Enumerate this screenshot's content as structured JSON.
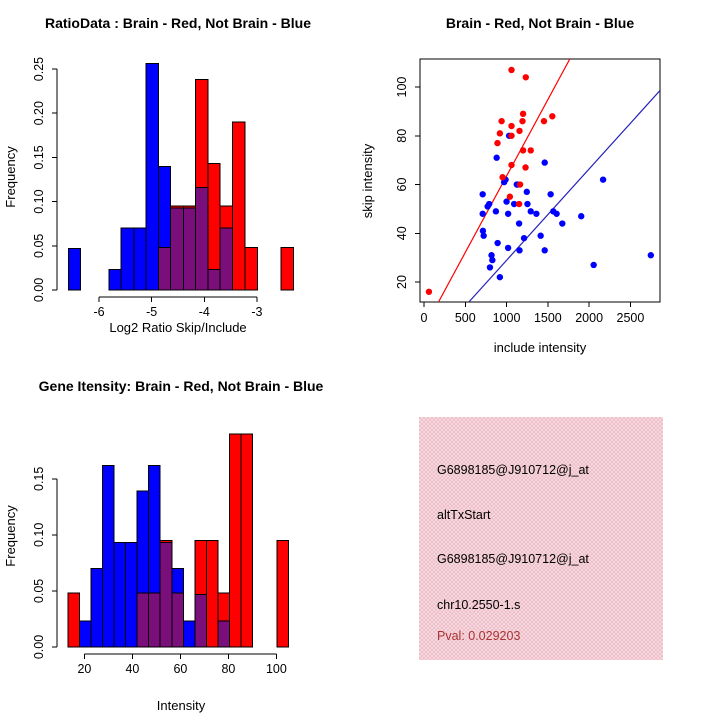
{
  "figure": {
    "background": "#ffffff"
  },
  "colors": {
    "red": "#ff0000",
    "blue": "#0000ff",
    "purple": "#7a0e7a",
    "red_line": "#ff0000",
    "blue_line": "#2222bb",
    "pink_box": "#f1c6d0",
    "pval_text": "#a93333",
    "axis": "#000000"
  },
  "chart_data": [
    {
      "id": "ratio_histogram",
      "type": "bar",
      "title": "RatioData : Brain - Red, Not Brain - Blue",
      "xlabel": "Log2 Ratio Skip/Include",
      "ylabel": "Frequency",
      "xlim": [
        -6.78,
        -2.22
      ],
      "ylim": [
        0,
        0.2557
      ],
      "xticks": [
        {
          "v": -6,
          "label": "-6"
        },
        {
          "v": -5,
          "label": "-5"
        },
        {
          "v": -4,
          "label": "-4"
        },
        {
          "v": -3,
          "label": "-3"
        }
      ],
      "yticks": [
        {
          "v": 0,
          "label": "0.00"
        },
        {
          "v": 0.05,
          "label": "0.05"
        },
        {
          "v": 0.1,
          "label": "0.10"
        },
        {
          "v": 0.15,
          "label": "0.15"
        },
        {
          "v": 0.2,
          "label": "0.20"
        },
        {
          "v": 0.25,
          "label": "0.25"
        }
      ],
      "legend_note": "Brain = red, Not Brain = blue, overlap = purple",
      "bins": [
        {
          "x0": -6.58,
          "x1": -6.35,
          "blue": 0.047,
          "red": 0
        },
        {
          "x0": -5.81,
          "x1": -5.58,
          "blue": 0.023,
          "red": 0
        },
        {
          "x0": -5.58,
          "x1": -5.34,
          "blue": 0.07,
          "red": 0
        },
        {
          "x0": -5.34,
          "x1": -5.11,
          "blue": 0.07,
          "red": 0
        },
        {
          "x0": -5.11,
          "x1": -4.87,
          "blue": 0.256,
          "red": 0
        },
        {
          "x0": -4.87,
          "x1": -4.64,
          "blue": 0.14,
          "red": 0.048
        },
        {
          "x0": -4.64,
          "x1": -4.4,
          "blue": 0.093,
          "red": 0.095
        },
        {
          "x0": -4.4,
          "x1": -4.17,
          "blue": 0.093,
          "red": 0.095
        },
        {
          "x0": -4.17,
          "x1": -3.93,
          "blue": 0.116,
          "red": 0.238
        },
        {
          "x0": -3.93,
          "x1": -3.7,
          "blue": 0.023,
          "red": 0.143
        },
        {
          "x0": -3.7,
          "x1": -3.46,
          "blue": 0.07,
          "red": 0.095
        },
        {
          "x0": -3.46,
          "x1": -3.23,
          "blue": 0,
          "red": 0.19
        },
        {
          "x0": -3.23,
          "x1": -2.99,
          "blue": 0,
          "red": 0.048
        },
        {
          "x0": -2.54,
          "x1": -2.31,
          "blue": 0,
          "red": 0.048
        }
      ]
    },
    {
      "id": "intensity_scatter",
      "type": "scatter",
      "title": "Brain - Red, Not Brain - Blue",
      "xlabel": "include intensity",
      "ylabel": "skip intensity",
      "xlim": [
        -48,
        2858
      ],
      "ylim": [
        11.8,
        111.5
      ],
      "xticks": [
        {
          "v": 0,
          "label": "0"
        },
        {
          "v": 500,
          "label": "500"
        },
        {
          "v": 1000,
          "label": "1000"
        },
        {
          "v": 1500,
          "label": "1500"
        },
        {
          "v": 2000,
          "label": "2000"
        },
        {
          "v": 2500,
          "label": "2500"
        }
      ],
      "yticks": [
        {
          "v": 20,
          "label": "20"
        },
        {
          "v": 40,
          "label": "40"
        },
        {
          "v": 60,
          "label": "60"
        },
        {
          "v": 80,
          "label": "80"
        },
        {
          "v": 100,
          "label": "100"
        }
      ],
      "red_points": [
        [
          60,
          16
        ],
        [
          1060,
          107
        ],
        [
          1233,
          104
        ],
        [
          940,
          86
        ],
        [
          1060,
          84
        ],
        [
          1193,
          86
        ],
        [
          1453,
          86
        ],
        [
          1554,
          88
        ],
        [
          1200,
          89
        ],
        [
          919,
          81
        ],
        [
          890,
          77
        ],
        [
          1157,
          82
        ],
        [
          1060,
          80
        ],
        [
          1200,
          74
        ],
        [
          1293,
          74
        ],
        [
          1060,
          68
        ],
        [
          1230,
          67
        ],
        [
          952,
          63
        ],
        [
          1164,
          60
        ],
        [
          1040,
          55
        ],
        [
          1152,
          52
        ]
      ],
      "blue_points": [
        [
          971,
          61
        ],
        [
          1031,
          80
        ],
        [
          880,
          71
        ],
        [
          1462,
          69
        ],
        [
          988,
          62
        ],
        [
          2169,
          62
        ],
        [
          1124,
          60
        ],
        [
          1133,
          60
        ],
        [
          1245,
          57
        ],
        [
          1534,
          56
        ],
        [
          711,
          56
        ],
        [
          1000,
          53
        ],
        [
          1092,
          52
        ],
        [
          1253,
          52
        ],
        [
          790,
          52
        ],
        [
          771,
          51
        ],
        [
          871,
          49
        ],
        [
          1019,
          48
        ],
        [
          1293,
          49
        ],
        [
          1361,
          48
        ],
        [
          1566,
          49
        ],
        [
          1606,
          48
        ],
        [
          1675,
          44
        ],
        [
          1904,
          47
        ],
        [
          1152,
          44
        ],
        [
          714,
          41
        ],
        [
          723,
          39
        ],
        [
          892,
          36
        ],
        [
          1019,
          34
        ],
        [
          1157,
          33
        ],
        [
          1413,
          39
        ],
        [
          1212,
          38
        ],
        [
          1462,
          33
        ],
        [
          818,
          31
        ],
        [
          828,
          29
        ],
        [
          799,
          26
        ],
        [
          919,
          22
        ],
        [
          2055,
          27
        ],
        [
          2747,
          31
        ],
        [
          711,
          48
        ]
      ],
      "red_line": {
        "x1": 176,
        "y1": 11.8,
        "x2": 1766,
        "y2": 111.5
      },
      "blue_line": {
        "x1": 549,
        "y1": 12.0,
        "x2": 2859,
        "y2": 98.6
      }
    },
    {
      "id": "gene_intensity_histogram",
      "type": "bar",
      "title": "Gene Itensity: Brain - Red, Not Brain - Blue",
      "xlabel": "Intensity",
      "ylabel": "Frequency",
      "xlim": [
        9,
        109
      ],
      "ylim": [
        0,
        0.198
      ],
      "xticks": [
        {
          "v": 20,
          "label": "20"
        },
        {
          "v": 40,
          "label": "40"
        },
        {
          "v": 60,
          "label": "60"
        },
        {
          "v": 80,
          "label": "80"
        },
        {
          "v": 100,
          "label": "100"
        }
      ],
      "yticks": [
        {
          "v": 0,
          "label": "0.00"
        },
        {
          "v": 0.05,
          "label": "0.05"
        },
        {
          "v": 0.1,
          "label": "0.10"
        },
        {
          "v": 0.15,
          "label": "0.15"
        }
      ],
      "legend_note": "Brain = red, Not Brain = blue, overlap = purple",
      "bins": [
        {
          "x0": 13.2,
          "x1": 18.0,
          "blue": 0,
          "red": 0.048
        },
        {
          "x0": 18.0,
          "x1": 22.8,
          "blue": 0.023,
          "red": 0
        },
        {
          "x0": 22.8,
          "x1": 27.6,
          "blue": 0.07,
          "red": 0
        },
        {
          "x0": 27.6,
          "x1": 32.4,
          "blue": 0.162,
          "red": 0
        },
        {
          "x0": 32.4,
          "x1": 37.2,
          "blue": 0.093,
          "red": 0
        },
        {
          "x0": 37.2,
          "x1": 42.0,
          "blue": 0.093,
          "red": 0
        },
        {
          "x0": 42.0,
          "x1": 46.8,
          "blue": 0.139,
          "red": 0.048
        },
        {
          "x0": 46.8,
          "x1": 51.6,
          "blue": 0.162,
          "red": 0.048
        },
        {
          "x0": 51.6,
          "x1": 56.4,
          "blue": 0.093,
          "red": 0.095
        },
        {
          "x0": 56.4,
          "x1": 61.2,
          "blue": 0.07,
          "red": 0.048
        },
        {
          "x0": 61.2,
          "x1": 66.0,
          "blue": 0.023,
          "red": 0
        },
        {
          "x0": 66.0,
          "x1": 70.8,
          "blue": 0.047,
          "red": 0.095
        },
        {
          "x0": 70.8,
          "x1": 75.6,
          "blue": 0,
          "red": 0.095
        },
        {
          "x0": 75.6,
          "x1": 80.4,
          "blue": 0.023,
          "red": 0.048
        },
        {
          "x0": 80.4,
          "x1": 85.2,
          "blue": 0,
          "red": 0.19
        },
        {
          "x0": 85.2,
          "x1": 90.0,
          "blue": 0,
          "red": 0.19
        },
        {
          "x0": 100.2,
          "x1": 105.0,
          "blue": 0,
          "red": 0.095
        }
      ]
    }
  ],
  "info_box": {
    "lines": [
      "G6898185@J910712@j_at",
      "altTxStart",
      "G6898185@J910712@j_at",
      "chr10.2550-1.s"
    ],
    "pval": "Pval: 0.029203"
  }
}
